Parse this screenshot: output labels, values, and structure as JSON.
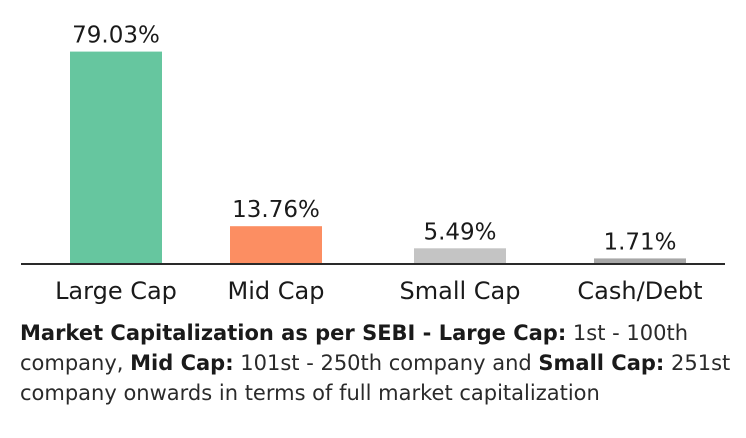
{
  "chart_data": {
    "type": "bar",
    "categories": [
      "Large Cap",
      "Mid Cap",
      "Small Cap",
      "Cash/Debt"
    ],
    "values": [
      79.03,
      13.76,
      5.49,
      1.71
    ],
    "value_labels": [
      "79.03%",
      "13.76%",
      "5.49%",
      "1.71%"
    ],
    "colors": [
      "#66c69f",
      "#fc8e62",
      "#c4c4c4",
      "#a7a7a7"
    ],
    "ylim": [
      0,
      80
    ],
    "grid": false,
    "legend": "none"
  },
  "caption": {
    "heading": "Market Capitalization as per SEBI - ",
    "large_cap_label": "Large Cap:",
    "large_cap_text": " 1st - 100th company, ",
    "mid_cap_label": "Mid Cap:",
    "mid_cap_text": " 101st - 250th company and ",
    "small_cap_label": "Small Cap:",
    "small_cap_text": " 251st company onwards in terms of full market capitalization"
  }
}
